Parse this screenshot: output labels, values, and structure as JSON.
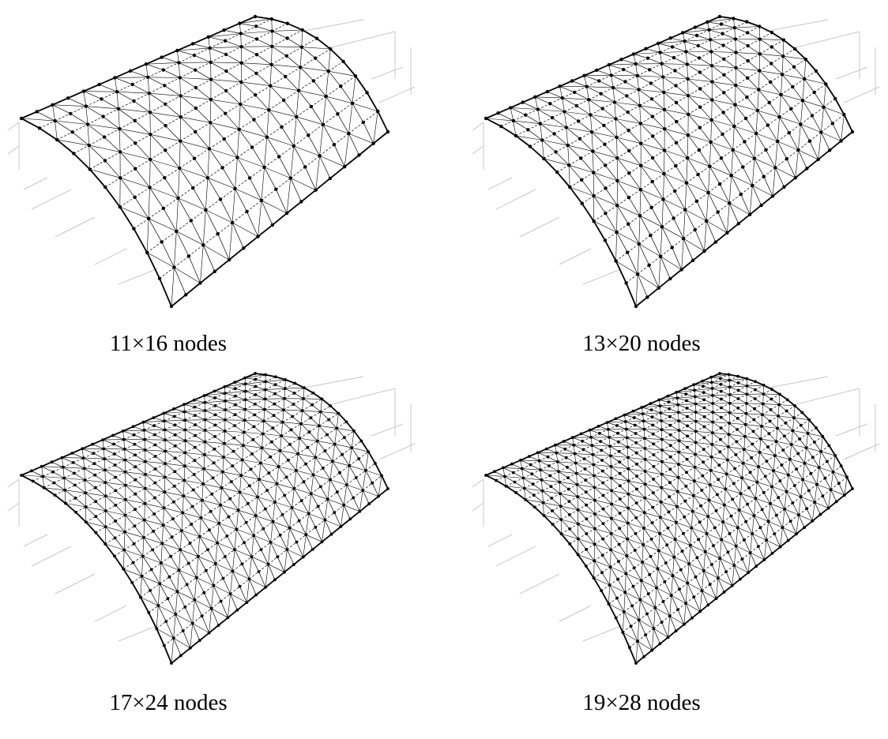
{
  "panels": [
    {
      "caption": "11×16 nodes",
      "rows": 11,
      "cols": 16
    },
    {
      "caption": "13×20 nodes",
      "rows": 13,
      "cols": 20
    },
    {
      "caption": "17×24 nodes",
      "rows": 17,
      "cols": 24
    },
    {
      "caption": "19×28 nodes",
      "rows": 19,
      "cols": 28
    }
  ],
  "colors": {
    "mesh": "#000000",
    "axes": "#c8c8c8",
    "background": "#ffffff"
  }
}
